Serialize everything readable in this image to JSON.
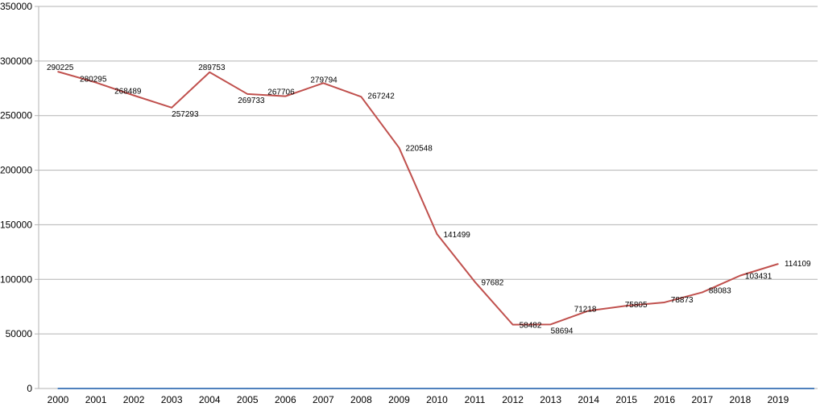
{
  "chart_data": {
    "type": "line",
    "title": "",
    "xlabel": "",
    "ylabel": "",
    "categories": [
      "2000",
      "2001",
      "2002",
      "2003",
      "2004",
      "2005",
      "2006",
      "2007",
      "2008",
      "2009",
      "2010",
      "2011",
      "2012",
      "2013",
      "2014",
      "2015",
      "2016",
      "2017",
      "2018",
      "2019"
    ],
    "series": [
      {
        "color": "#c0504d",
        "values": [
          290225,
          280295,
          268489,
          257293,
          289753,
          269733,
          267706,
          279794,
          267242,
          220548,
          141499,
          97682,
          58482,
          58694,
          71218,
          75805,
          78873,
          88083,
          103431,
          114109
        ],
        "labels": [
          "290225",
          "280295",
          "268489",
          "257293",
          "289753",
          "269733",
          "267706",
          "279794",
          "267242",
          "220548",
          "141499",
          "97682",
          "58482",
          "58694",
          "71218",
          "75805",
          "78873",
          "88083",
          "103431",
          "114109"
        ]
      },
      {
        "color": "#4f81bd",
        "values": [
          0,
          0,
          0,
          0,
          0,
          0,
          0,
          0,
          0,
          0,
          0,
          0,
          0,
          0,
          0,
          0,
          0,
          0,
          0,
          0
        ]
      }
    ],
    "ylim": [
      0,
      350000
    ],
    "yticks": [
      "0",
      "50000",
      "100000",
      "150000",
      "200000",
      "250000",
      "300000",
      "350000"
    ],
    "grid": true,
    "legend": "none"
  }
}
